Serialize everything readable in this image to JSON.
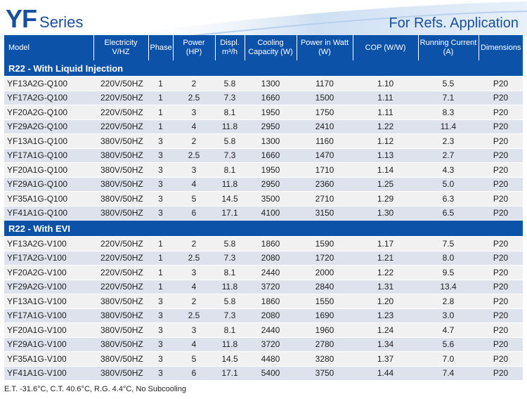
{
  "header": {
    "title_big": "YF",
    "title_small": "Series",
    "subtitle": "For Refs. Application"
  },
  "columns": [
    "Model",
    "Electricity V/HZ",
    "Phase",
    "Power (HP)",
    "Displ. m³/h",
    "Cooling Capacity (W)",
    "Power in Watt (W)",
    "COP (W/W)",
    "Running Current (A)",
    "Dimensions"
  ],
  "sections": [
    {
      "title": "R22 - With Liquid Injection",
      "rows": [
        [
          "YF13A2G-Q100",
          "220V/50HZ",
          "1",
          "2",
          "5.8",
          "1300",
          "1170",
          "1.10",
          "5.5",
          "P20"
        ],
        [
          "YF17A2G-Q100",
          "220V/50HZ",
          "1",
          "2.5",
          "7.3",
          "1660",
          "1500",
          "1.11",
          "7.1",
          "P20"
        ],
        [
          "YF20A2G-Q100",
          "220V/50HZ",
          "1",
          "3",
          "8.1",
          "1950",
          "1750",
          "1.11",
          "8.3",
          "P20"
        ],
        [
          "YF29A2G-Q100",
          "220V/50HZ",
          "1",
          "4",
          "11.8",
          "2950",
          "2410",
          "1.22",
          "11.4",
          "P20"
        ],
        [
          "YF13A1G-Q100",
          "380V/50HZ",
          "3",
          "2",
          "5.8",
          "1300",
          "1160",
          "1.12",
          "2.3",
          "P20"
        ],
        [
          "YF17A1G-Q100",
          "380V/50HZ",
          "3",
          "2.5",
          "7.3",
          "1660",
          "1470",
          "1.13",
          "2.7",
          "P20"
        ],
        [
          "YF20A1G-Q100",
          "380V/50HZ",
          "3",
          "3",
          "8.1",
          "1950",
          "1710",
          "1.14",
          "4.3",
          "P20"
        ],
        [
          "YF29A1G-Q100",
          "380V/50HZ",
          "3",
          "4",
          "11.8",
          "2950",
          "2360",
          "1.25",
          "5.0",
          "P20"
        ],
        [
          "YF35A1G-Q100",
          "380V/50HZ",
          "3",
          "5",
          "14.5",
          "3500",
          "2710",
          "1.29",
          "6.3",
          "P20"
        ],
        [
          "YF41A1G-Q100",
          "380V/50HZ",
          "3",
          "6",
          "17.1",
          "4100",
          "3150",
          "1.30",
          "6.5",
          "P20"
        ]
      ]
    },
    {
      "title": "R22 - With EVI",
      "rows": [
        [
          "YF13A2G-V100",
          "220V/50HZ",
          "1",
          "2",
          "5.8",
          "1860",
          "1590",
          "1.17",
          "7.5",
          "P20"
        ],
        [
          "YF17A2G-V100",
          "220V/50HZ",
          "1",
          "2.5",
          "7.3",
          "2080",
          "1720",
          "1.21",
          "8.0",
          "P20"
        ],
        [
          "YF20A2G-V100",
          "220V/50HZ",
          "1",
          "3",
          "8.1",
          "2440",
          "2000",
          "1.22",
          "9.5",
          "P20"
        ],
        [
          "YF29A2G-V100",
          "220V/50HZ",
          "1",
          "4",
          "11.8",
          "3720",
          "2840",
          "1.31",
          "13.4",
          "P20"
        ],
        [
          "YF13A1G-V100",
          "380V/50HZ",
          "3",
          "2",
          "5.8",
          "1860",
          "1550",
          "1.20",
          "2.8",
          "P20"
        ],
        [
          "YF17A1G-V100",
          "380V/50HZ",
          "3",
          "2.5",
          "7.3",
          "2080",
          "1690",
          "1.23",
          "3.0",
          "P20"
        ],
        [
          "YF20A1G-V100",
          "380V/50HZ",
          "3",
          "3",
          "8.1",
          "2440",
          "1960",
          "1.24",
          "4.7",
          "P20"
        ],
        [
          "YF29A1G-V100",
          "380V/50HZ",
          "3",
          "4",
          "11.8",
          "3720",
          "2780",
          "1.34",
          "5.6",
          "P20"
        ],
        [
          "YF35A1G-V100",
          "380V/50HZ",
          "3",
          "5",
          "14.5",
          "4480",
          "3280",
          "1.37",
          "7.0",
          "P20"
        ],
        [
          "YF41A1G-V100",
          "380V/50HZ",
          "3",
          "6",
          "17.1",
          "5400",
          "3750",
          "1.44",
          "7.4",
          "P20"
        ]
      ]
    }
  ],
  "footnote": "E.T. -31.6°C, C.T. 40.6°C, R.G. 4.4°C, No Subcooling"
}
